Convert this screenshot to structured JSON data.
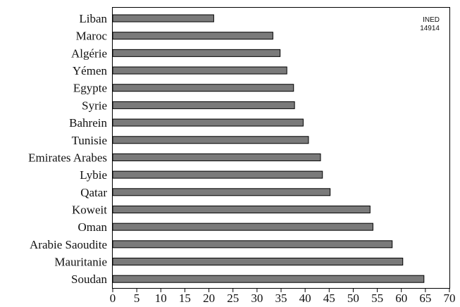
{
  "source_note": {
    "line1": "INED",
    "line2": "14914"
  },
  "chart_data": {
    "type": "bar",
    "orientation": "horizontal",
    "title": "",
    "xlabel": "",
    "ylabel": "",
    "xlim": [
      0,
      70
    ],
    "x_ticks": [
      0,
      5,
      10,
      15,
      20,
      25,
      30,
      35,
      40,
      45,
      50,
      55,
      60,
      65,
      70
    ],
    "grid": false,
    "legend": "none",
    "bar_color": "#7a7a7a",
    "categories": [
      "Liban",
      "Maroc",
      "Algérie",
      "Yémen",
      "Egypte",
      "Syrie",
      "Bahrein",
      "Tunisie",
      "Emirates Arabes",
      "Lybie",
      "Qatar",
      "Koweit",
      "Oman",
      "Arabie Saoudite",
      "Mauritanie",
      "Soudan"
    ],
    "values": [
      21,
      33.3,
      34.8,
      36.2,
      37.6,
      37.8,
      39.6,
      40.7,
      43.2,
      43.6,
      45.2,
      53.5,
      54.1,
      58.1,
      60.3,
      64.7
    ]
  }
}
